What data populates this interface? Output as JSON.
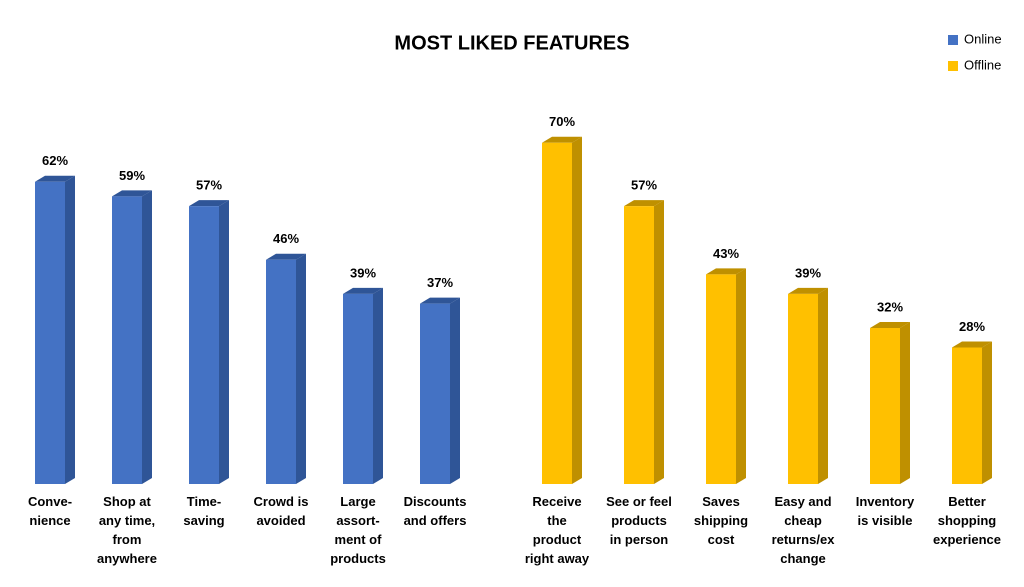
{
  "chart_data": {
    "type": "bar3d",
    "title": "MOST LIKED FEATURES",
    "categories": [
      "Conve-\nnience",
      "Shop at\nany time,\nfrom\nanywhere",
      "Time-\nsaving",
      "Crowd is\navoided",
      "Large\nassort-\nment of\nproducts",
      "Discounts\nand offers",
      "Receive\nthe\nproduct\nright away",
      "See or feel\nproducts\nin person",
      "Saves\nshipping\ncost",
      "Easy and\ncheap\nreturns/ex\nchange",
      "Inventory\nis visible",
      "Better\nshopping\nexperience"
    ],
    "series": [
      {
        "name": "Online",
        "color": "#4472c4",
        "side_color": "#2f5597",
        "values": [
          62,
          59,
          57,
          46,
          39,
          37,
          null,
          null,
          null,
          null,
          null,
          null
        ],
        "value_labels": [
          "62%",
          "59%",
          "57%",
          "46%",
          "39%",
          "37%",
          null,
          null,
          null,
          null,
          null,
          null
        ]
      },
      {
        "name": "Offline",
        "color": "#ffc000",
        "side_color": "#bf9000",
        "values": [
          null,
          null,
          null,
          null,
          null,
          null,
          70,
          57,
          43,
          39,
          32,
          28
        ],
        "value_labels": [
          null,
          null,
          null,
          null,
          null,
          null,
          "70%",
          "57%",
          "43%",
          "39%",
          "32%",
          "28%"
        ]
      }
    ],
    "ylim": [
      0,
      80
    ],
    "legend": "top-right"
  }
}
